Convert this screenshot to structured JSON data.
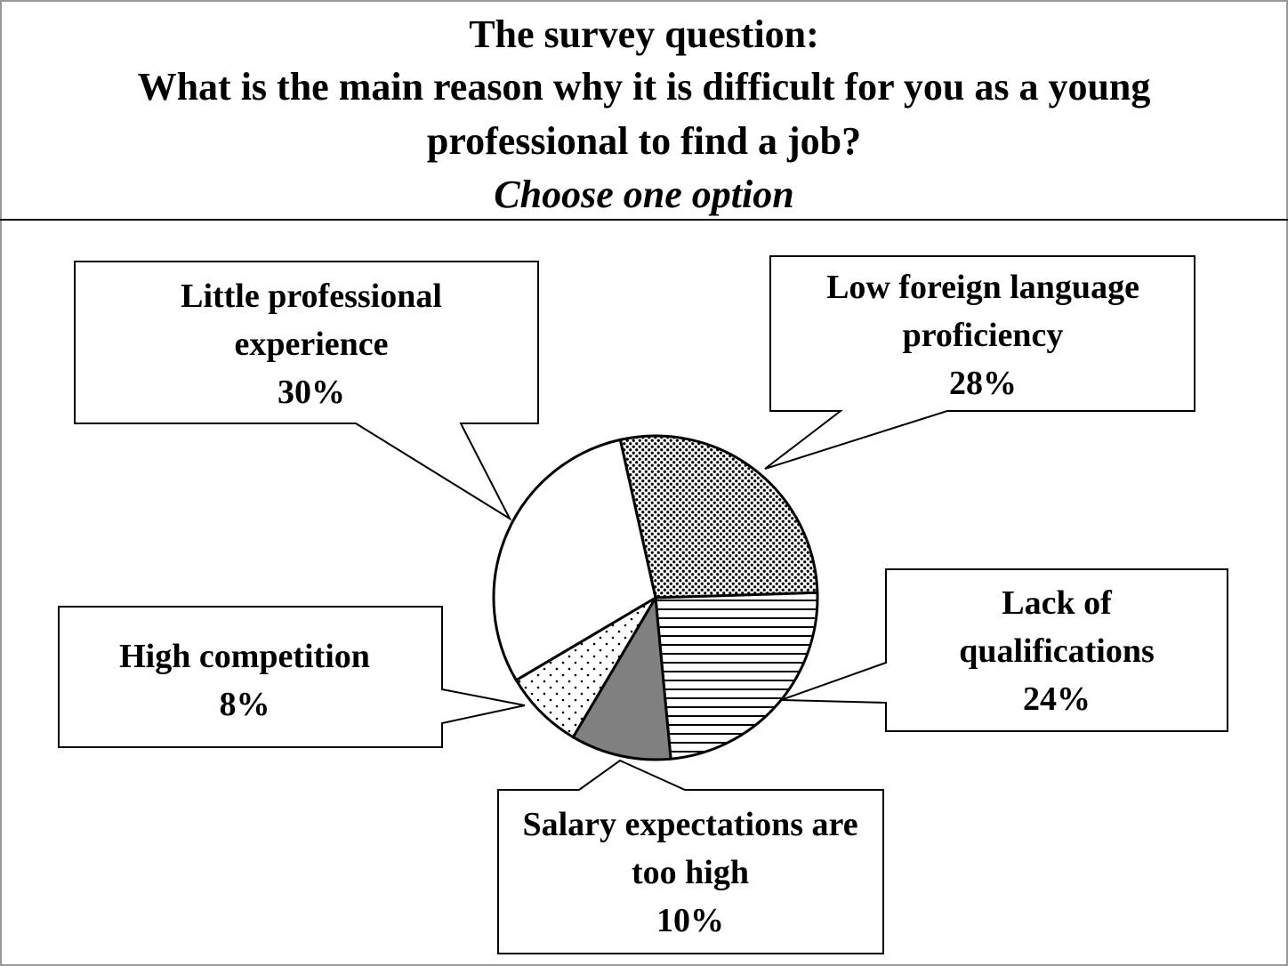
{
  "chart_data": {
    "type": "pie",
    "title": "The survey question:",
    "subtitle": "What is the main reason why it is difficult for you as a young professional to find a job?",
    "note": "Choose one option",
    "categories": [
      "Low foreign language proficiency",
      "Lack of qualifications",
      "Salary expectations are too high",
      "High competition",
      "Little professional experience"
    ],
    "values": [
      28,
      24,
      10,
      8,
      30
    ],
    "value_labels": [
      "28%",
      "24%",
      "10%",
      "8%",
      "30%"
    ],
    "colors": [
      "#ffffff",
      "#ffffff",
      "#808080",
      "#ffffff",
      "#ffffff"
    ],
    "hatch": [
      "checker",
      "horizontal",
      "none",
      "dots",
      "none"
    ]
  }
}
